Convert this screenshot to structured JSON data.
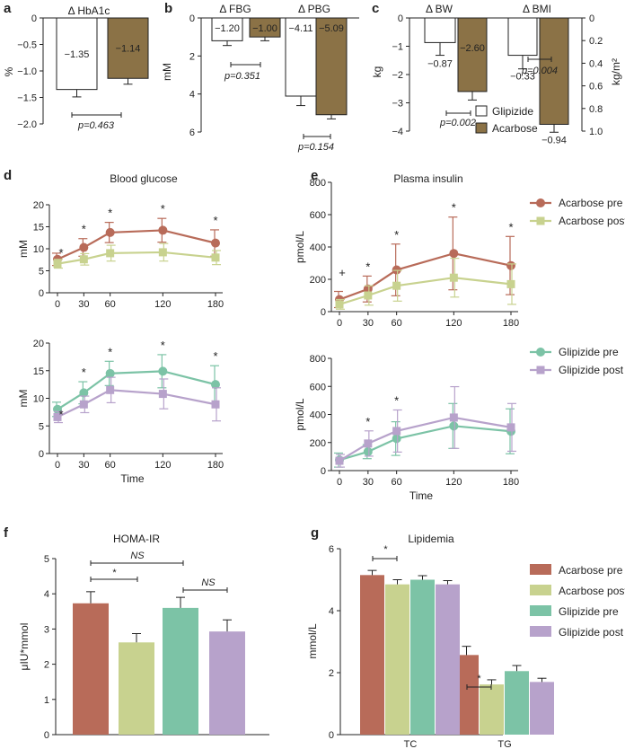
{
  "colors": {
    "acarbose_pre": "#b86b59",
    "acarbose_post": "#c8d28f",
    "glipizide_pre": "#7cc3a6",
    "glipizide_post": "#b7a2cb",
    "bar_acarbose": "#8b7246",
    "bar_glipizide": "#ffffff",
    "axis": "#222222"
  },
  "chart_data": [
    {
      "id": "a",
      "panel_letter": "a",
      "type": "bar",
      "title": "Δ HbA1c",
      "ylabel": "%",
      "ylim": [
        -2.0,
        0
      ],
      "yticks": [
        "0",
        "−0.5",
        "−1.0",
        "−1.5",
        "−2.0"
      ],
      "series": [
        {
          "name": "Glipizide",
          "values": [
            -1.35
          ],
          "errors": [
            0.14
          ],
          "labels": [
            "−1.35"
          ]
        },
        {
          "name": "Acarbose",
          "values": [
            -1.14
          ],
          "errors": [
            0.11
          ],
          "labels": [
            "−1.14"
          ]
        }
      ],
      "annotations": [
        {
          "text": "p=0.463"
        }
      ]
    },
    {
      "id": "b",
      "panel_letter": "b",
      "type": "bar",
      "categories": [
        "Δ FBG",
        "Δ PBG"
      ],
      "ylabel": "mM",
      "ylim": [
        0,
        6
      ],
      "inverted": true,
      "yticks": [
        "0",
        "2",
        "4",
        "6"
      ],
      "series": [
        {
          "name": "Glipizide",
          "values": [
            1.2,
            4.11
          ],
          "errors": [
            0.25,
            0.5
          ],
          "labels": [
            "−1.20",
            "−4.11"
          ]
        },
        {
          "name": "Acarbose",
          "values": [
            1.0,
            5.09
          ],
          "errors": [
            0.2,
            0.22
          ],
          "labels": [
            "−1.00",
            "−5.09"
          ]
        }
      ],
      "annotations": [
        {
          "text": "p=0.351"
        },
        {
          "text": "p=0.154"
        }
      ]
    },
    {
      "id": "c",
      "panel_letter": "c",
      "type": "bar",
      "categories": [
        "Δ BW",
        "Δ BMI"
      ],
      "ylabel": "kg",
      "ylabel_right": "kg/m²",
      "ylim": [
        -4,
        0
      ],
      "ylim_right": [
        1,
        0
      ],
      "yticks": [
        "0",
        "−1",
        "−2",
        "−3",
        "−4"
      ],
      "yticks_right": [
        "0",
        "0.2",
        "0.4",
        "0.6",
        "0.8",
        "1.0"
      ],
      "series": [
        {
          "name": "Glipizide",
          "values": [
            -0.87,
            -0.33
          ],
          "errors": [
            0.45,
            0.12
          ],
          "labels": [
            "−0.87",
            "−0.33"
          ]
        },
        {
          "name": "Acarbose",
          "values": [
            -2.6,
            -0.94
          ],
          "errors": [
            0.3,
            0.07
          ],
          "labels": [
            "−2.60",
            "−0.94"
          ]
        }
      ],
      "annotations": [
        {
          "text": "p=0.002"
        },
        {
          "text": "p=0.004"
        }
      ],
      "legend": [
        "Glipizide",
        "Acarbose"
      ]
    },
    {
      "id": "d_top",
      "panel_letter": "d",
      "type": "line",
      "title": "Blood glucose",
      "ylabel": "mM",
      "x": [
        0,
        30,
        60,
        120,
        180
      ],
      "ylim": [
        0,
        20
      ],
      "xticks": [
        "0",
        "30",
        "60",
        "120",
        "180"
      ],
      "yticks": [
        "0",
        "5",
        "10",
        "15",
        "20"
      ],
      "series": [
        {
          "name": "Acarbose pre",
          "values": [
            7.6,
            10.3,
            13.7,
            14.2,
            11.3
          ],
          "errors": [
            1.4,
            2.0,
            2.3,
            2.7,
            3.0
          ]
        },
        {
          "name": "Acarbose post",
          "values": [
            6.6,
            7.6,
            9.0,
            9.2,
            8.0
          ],
          "errors": [
            1.0,
            1.3,
            1.8,
            2.0,
            1.6
          ]
        }
      ],
      "stars": [
        "*",
        "*",
        "*",
        "*",
        "*"
      ]
    },
    {
      "id": "d_bottom",
      "type": "line",
      "ylabel": "mM",
      "xlabel": "Time",
      "x": [
        0,
        30,
        60,
        120,
        180
      ],
      "ylim": [
        0,
        20
      ],
      "xticks": [
        "0",
        "30",
        "60",
        "120",
        "180"
      ],
      "yticks": [
        "0",
        "5",
        "10",
        "15",
        "20"
      ],
      "series": [
        {
          "name": "Glipizide pre",
          "values": [
            8.0,
            11.0,
            14.5,
            14.9,
            12.5
          ],
          "errors": [
            1.3,
            2.0,
            2.2,
            3.0,
            3.4
          ]
        },
        {
          "name": "Glipizide post",
          "values": [
            6.6,
            8.9,
            11.5,
            10.8,
            8.9
          ],
          "errors": [
            1.0,
            1.5,
            2.3,
            2.7,
            3.0
          ]
        }
      ],
      "stars": [
        "*",
        "*",
        "*",
        "*",
        "*"
      ]
    },
    {
      "id": "e_top",
      "panel_letter": "e",
      "type": "line",
      "title": "Plasma insulin",
      "ylabel": "pmol/L",
      "x": [
        0,
        30,
        60,
        120,
        180
      ],
      "ylim": [
        0,
        800
      ],
      "xticks": [
        "0",
        "30",
        "60",
        "120",
        "180"
      ],
      "yticks": [
        "0",
        "200",
        "400",
        "600",
        "800"
      ],
      "series": [
        {
          "name": "Acarbose pre",
          "values": [
            75,
            140,
            258,
            360,
            285
          ],
          "errors": [
            50,
            80,
            160,
            225,
            180
          ]
        },
        {
          "name": "Acarbose post",
          "values": [
            45,
            100,
            160,
            210,
            170
          ],
          "errors": [
            30,
            60,
            95,
            120,
            125
          ]
        }
      ],
      "stars": [
        "+",
        "*",
        "*",
        "*",
        "*"
      ]
    },
    {
      "id": "e_bottom",
      "type": "line",
      "ylabel": "pmol/L",
      "xlabel": "Time",
      "x": [
        0,
        30,
        60,
        120,
        180
      ],
      "ylim": [
        0,
        800
      ],
      "xticks": [
        "0",
        "30",
        "60",
        "120",
        "180"
      ],
      "yticks": [
        "0",
        "200",
        "400",
        "600",
        "800"
      ],
      "series": [
        {
          "name": "Glipizide pre",
          "values": [
            75,
            135,
            228,
            318,
            280
          ],
          "errors": [
            50,
            50,
            120,
            160,
            160
          ]
        },
        {
          "name": "Glipizide post",
          "values": [
            70,
            193,
            282,
            378,
            308
          ],
          "errors": [
            45,
            90,
            150,
            220,
            170
          ]
        }
      ],
      "stars": [
        "",
        "*",
        "*",
        "",
        ""
      ]
    },
    {
      "id": "f",
      "panel_letter": "f",
      "type": "bar",
      "title": "HOMA-IR",
      "ylabel": "μIU*mmol",
      "ylim": [
        0,
        5
      ],
      "yticks": [
        "0",
        "1",
        "2",
        "3",
        "4",
        "5"
      ],
      "categories": [
        "Acarbose pre",
        "Acarbose post",
        "Glipizide pre",
        "Glipizide post"
      ],
      "values": [
        3.73,
        2.62,
        3.6,
        2.93
      ],
      "errors": [
        0.33,
        0.25,
        0.3,
        0.33
      ],
      "annotations": [
        {
          "text": "NS"
        },
        {
          "text": "*"
        },
        {
          "text": "NS"
        }
      ]
    },
    {
      "id": "g",
      "panel_letter": "g",
      "type": "bar",
      "title": "Lipidemia",
      "ylabel": "mmol/L",
      "ylim": [
        0,
        6
      ],
      "yticks": [
        "0",
        "2",
        "4",
        "6"
      ],
      "categories": [
        "TC",
        "TG"
      ],
      "series": [
        {
          "name": "Acarbose pre",
          "values": [
            5.15,
            2.57
          ],
          "errors": [
            0.15,
            0.28
          ]
        },
        {
          "name": "Acarbose post",
          "values": [
            4.85,
            1.62
          ],
          "errors": [
            0.15,
            0.15
          ]
        },
        {
          "name": "Glipizide pre",
          "values": [
            5.0,
            2.05
          ],
          "errors": [
            0.13,
            0.18
          ]
        },
        {
          "name": "Glipizide post",
          "values": [
            4.85,
            1.7
          ],
          "errors": [
            0.12,
            0.12
          ]
        }
      ],
      "annotations": [
        {
          "text": "*"
        },
        {
          "text": "*"
        }
      ]
    }
  ]
}
